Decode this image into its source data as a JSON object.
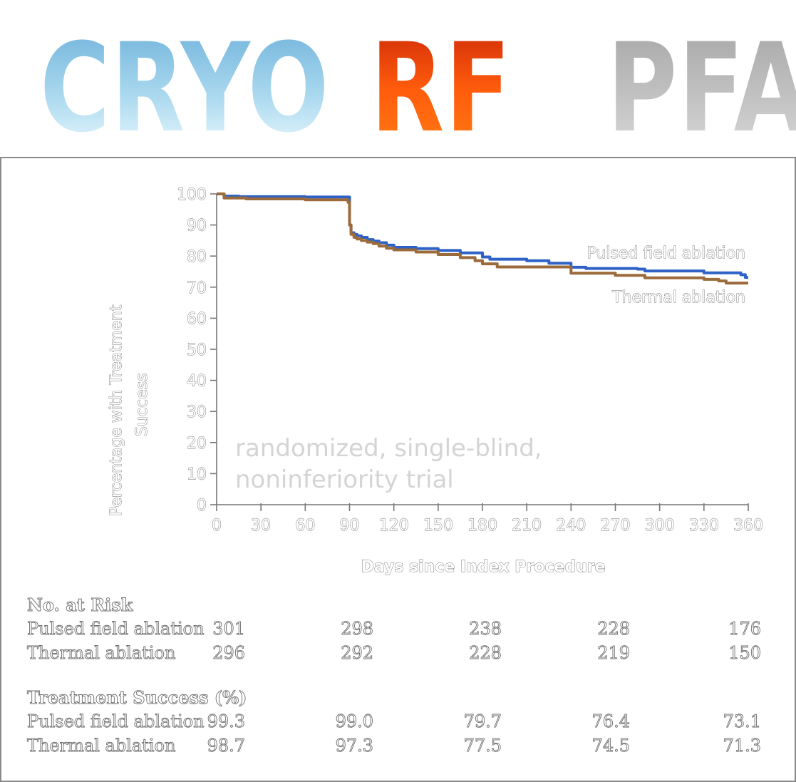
{
  "header": {
    "modalities": [
      "CRYO",
      "RF",
      "PFA"
    ]
  },
  "watermark": [
    "randomized, single-blind,",
    "noninferiority trial"
  ],
  "chart_data": {
    "type": "line",
    "xlabel": "Days since Index Procedure",
    "ylabel": "Percentage with Treatment Success",
    "xlim": [
      0,
      360
    ],
    "ylim": [
      0,
      100
    ],
    "xticks": [
      0,
      30,
      60,
      90,
      120,
      150,
      180,
      210,
      240,
      270,
      300,
      330,
      360
    ],
    "yticks": [
      0,
      10,
      20,
      30,
      40,
      50,
      60,
      70,
      80,
      90,
      100
    ],
    "grid": false,
    "series": [
      {
        "name": "Pulsed field ablation",
        "color": "#2f62c6",
        "step": true,
        "x": [
          0,
          5,
          15,
          60,
          89,
          90,
          91,
          93,
          95,
          98,
          102,
          106,
          110,
          115,
          120,
          135,
          150,
          165,
          180,
          185,
          210,
          225,
          240,
          250,
          285,
          290,
          330,
          355,
          358,
          360
        ],
        "y": [
          100,
          99.3,
          99.1,
          99.0,
          99.0,
          90,
          87.5,
          87,
          86.5,
          86,
          85.3,
          84.8,
          84.3,
          83.5,
          82.8,
          82.4,
          81.8,
          81.0,
          79.7,
          79.0,
          78.5,
          77.7,
          76.4,
          76.0,
          75.8,
          75.2,
          74.6,
          74.0,
          73.1,
          73.1
        ]
      },
      {
        "name": "Thermal ablation",
        "color": "#9b6b3b",
        "step": true,
        "x": [
          0,
          5,
          20,
          60,
          89,
          90,
          91,
          93,
          95,
          98,
          102,
          106,
          110,
          115,
          120,
          135,
          150,
          165,
          175,
          180,
          190,
          240,
          270,
          290,
          330,
          340,
          345,
          360
        ],
        "y": [
          100,
          98.7,
          98.4,
          98.1,
          97.3,
          90,
          87,
          86,
          85.5,
          85,
          84.5,
          84,
          83.2,
          82.5,
          82,
          81.3,
          80.5,
          79.5,
          78.5,
          77.5,
          76.5,
          74.5,
          73.8,
          73.0,
          72.5,
          72.0,
          71.3,
          71.3
        ]
      }
    ],
    "series_labels": [
      "Pulsed field ablation",
      "Thermal ablation"
    ]
  },
  "risk_table": {
    "heading": "No. at Risk",
    "rows": [
      {
        "label": "Pulsed field ablation",
        "values": [
          "301",
          "298",
          "238",
          "228",
          "176"
        ]
      },
      {
        "label": "Thermal ablation",
        "values": [
          "296",
          "292",
          "228",
          "219",
          "150"
        ]
      }
    ]
  },
  "success_table": {
    "heading": "Treatment Success (%)",
    "rows": [
      {
        "label": "Pulsed field ablation",
        "values": [
          "99.3",
          "99.0",
          "79.7",
          "76.4",
          "73.1"
        ]
      },
      {
        "label": "Thermal ablation",
        "values": [
          "98.7",
          "97.3",
          "77.5",
          "74.5",
          "71.3"
        ]
      }
    ]
  }
}
